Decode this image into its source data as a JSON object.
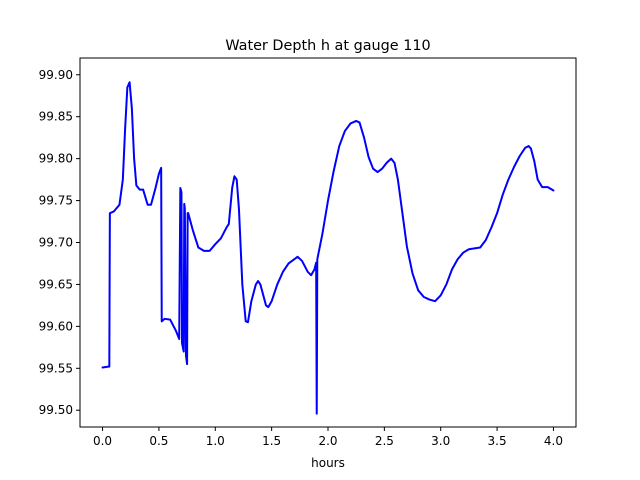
{
  "chart_data": {
    "type": "line",
    "title": "Water Depth h at gauge 110",
    "xlabel": "hours",
    "ylabel": "",
    "xlim": [
      -0.2,
      4.2
    ],
    "ylim": [
      99.48,
      99.92
    ],
    "xticks": [
      0.0,
      0.5,
      1.0,
      1.5,
      2.0,
      2.5,
      3.0,
      3.5,
      4.0
    ],
    "xtick_labels": [
      "0.0",
      "0.5",
      "1.0",
      "1.5",
      "2.0",
      "2.5",
      "3.0",
      "3.5",
      "4.0"
    ],
    "yticks": [
      99.5,
      99.55,
      99.6,
      99.65,
      99.7,
      99.75,
      99.8,
      99.85,
      99.9
    ],
    "ytick_labels": [
      "99.50",
      "99.55",
      "99.60",
      "99.65",
      "99.70",
      "99.75",
      "99.80",
      "99.85",
      "99.90"
    ],
    "grid": false,
    "legend": "none",
    "series": [
      {
        "color": "#0000ff",
        "points": [
          [
            0.0,
            99.551
          ],
          [
            0.05,
            99.552
          ],
          [
            0.06,
            99.552
          ],
          [
            0.065,
            99.735
          ],
          [
            0.1,
            99.737
          ],
          [
            0.15,
            99.745
          ],
          [
            0.18,
            99.775
          ],
          [
            0.2,
            99.835
          ],
          [
            0.22,
            99.885
          ],
          [
            0.24,
            99.891
          ],
          [
            0.26,
            99.86
          ],
          [
            0.28,
            99.8
          ],
          [
            0.3,
            99.768
          ],
          [
            0.33,
            99.763
          ],
          [
            0.36,
            99.763
          ],
          [
            0.4,
            99.745
          ],
          [
            0.43,
            99.745
          ],
          [
            0.47,
            99.765
          ],
          [
            0.5,
            99.782
          ],
          [
            0.52,
            99.789
          ],
          [
            0.525,
            99.606
          ],
          [
            0.55,
            99.609
          ],
          [
            0.6,
            99.608
          ],
          [
            0.65,
            99.595
          ],
          [
            0.68,
            99.585
          ],
          [
            0.69,
            99.765
          ],
          [
            0.7,
            99.76
          ],
          [
            0.705,
            99.58
          ],
          [
            0.72,
            99.57
          ],
          [
            0.725,
            99.746
          ],
          [
            0.73,
            99.74
          ],
          [
            0.74,
            99.565
          ],
          [
            0.745,
            99.56
          ],
          [
            0.75,
            99.555
          ],
          [
            0.755,
            99.735
          ],
          [
            0.76,
            99.735
          ],
          [
            0.8,
            99.715
          ],
          [
            0.85,
            99.694
          ],
          [
            0.9,
            99.69
          ],
          [
            0.95,
            99.69
          ],
          [
            1.0,
            99.698
          ],
          [
            1.05,
            99.705
          ],
          [
            1.1,
            99.718
          ],
          [
            1.12,
            99.722
          ],
          [
            1.15,
            99.765
          ],
          [
            1.17,
            99.779
          ],
          [
            1.19,
            99.775
          ],
          [
            1.21,
            99.74
          ],
          [
            1.24,
            99.65
          ],
          [
            1.27,
            99.606
          ],
          [
            1.29,
            99.605
          ],
          [
            1.32,
            99.63
          ],
          [
            1.36,
            99.65
          ],
          [
            1.38,
            99.654
          ],
          [
            1.4,
            99.65
          ],
          [
            1.45,
            99.625
          ],
          [
            1.47,
            99.623
          ],
          [
            1.5,
            99.63
          ],
          [
            1.55,
            99.65
          ],
          [
            1.6,
            99.665
          ],
          [
            1.65,
            99.675
          ],
          [
            1.7,
            99.68
          ],
          [
            1.73,
            99.683
          ],
          [
            1.77,
            99.678
          ],
          [
            1.82,
            99.665
          ],
          [
            1.85,
            99.661
          ],
          [
            1.88,
            99.668
          ],
          [
            1.895,
            99.676
          ],
          [
            1.9,
            99.496
          ],
          [
            1.905,
            99.68
          ],
          [
            1.95,
            99.71
          ],
          [
            2.0,
            99.75
          ],
          [
            2.05,
            99.785
          ],
          [
            2.1,
            99.815
          ],
          [
            2.15,
            99.833
          ],
          [
            2.2,
            99.842
          ],
          [
            2.25,
            99.845
          ],
          [
            2.28,
            99.843
          ],
          [
            2.32,
            99.825
          ],
          [
            2.36,
            99.802
          ],
          [
            2.4,
            99.788
          ],
          [
            2.44,
            99.784
          ],
          [
            2.48,
            99.788
          ],
          [
            2.52,
            99.795
          ],
          [
            2.56,
            99.8
          ],
          [
            2.59,
            99.795
          ],
          [
            2.62,
            99.775
          ],
          [
            2.66,
            99.735
          ],
          [
            2.7,
            99.695
          ],
          [
            2.75,
            99.663
          ],
          [
            2.8,
            99.643
          ],
          [
            2.85,
            99.635
          ],
          [
            2.9,
            99.632
          ],
          [
            2.95,
            99.63
          ],
          [
            3.0,
            99.637
          ],
          [
            3.05,
            99.65
          ],
          [
            3.1,
            99.668
          ],
          [
            3.15,
            99.68
          ],
          [
            3.2,
            99.688
          ],
          [
            3.25,
            99.692
          ],
          [
            3.3,
            99.693
          ],
          [
            3.35,
            99.694
          ],
          [
            3.4,
            99.703
          ],
          [
            3.45,
            99.718
          ],
          [
            3.5,
            99.735
          ],
          [
            3.55,
            99.757
          ],
          [
            3.6,
            99.775
          ],
          [
            3.65,
            99.79
          ],
          [
            3.7,
            99.803
          ],
          [
            3.75,
            99.813
          ],
          [
            3.78,
            99.815
          ],
          [
            3.8,
            99.812
          ],
          [
            3.83,
            99.797
          ],
          [
            3.86,
            99.775
          ],
          [
            3.9,
            99.766
          ],
          [
            3.95,
            99.766
          ],
          [
            4.0,
            99.762
          ]
        ]
      }
    ]
  }
}
